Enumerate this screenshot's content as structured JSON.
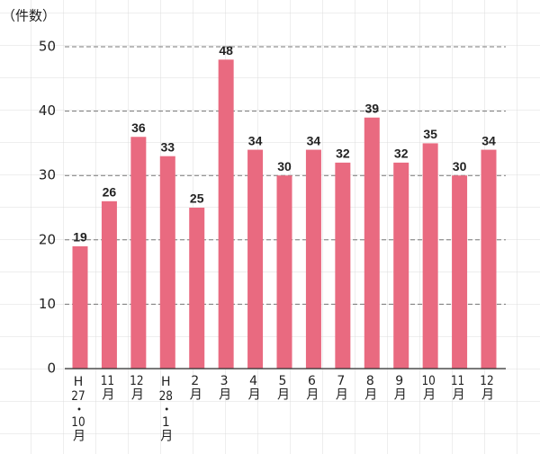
{
  "chart_data": {
    "type": "bar",
    "y_label": "（件数）",
    "categories": [
      "H27・10月",
      "11月",
      "12月",
      "H28・1月",
      "2月",
      "3月",
      "4月",
      "5月",
      "6月",
      "7月",
      "8月",
      "9月",
      "10月",
      "11月",
      "12月"
    ],
    "values": [
      19,
      26,
      36,
      33,
      25,
      48,
      34,
      30,
      34,
      32,
      39,
      32,
      35,
      30,
      34
    ],
    "color": "#e96a80",
    "ylim": [
      0,
      50
    ],
    "yticks": [
      0,
      10,
      20,
      30,
      40,
      50
    ],
    "grid": true
  }
}
